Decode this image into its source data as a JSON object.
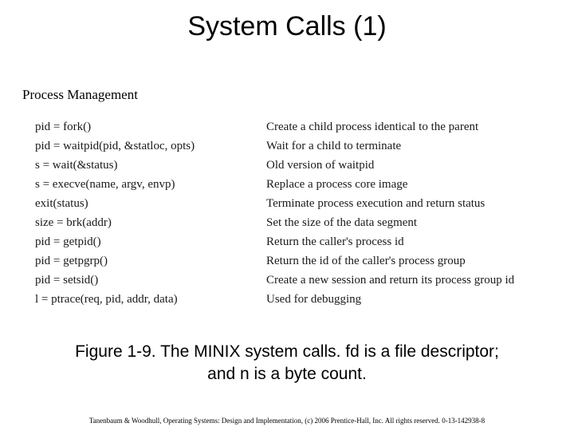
{
  "title": "System Calls (1)",
  "section_label": "Process Management",
  "syscalls": {
    "rows": [
      {
        "call": "pid = fork()",
        "desc": "Create a child process identical to the parent"
      },
      {
        "call": "pid = waitpid(pid, &statloc, opts)",
        "desc": "Wait for a child to terminate"
      },
      {
        "call": "s = wait(&status)",
        "desc": "Old version of waitpid"
      },
      {
        "call": "s = execve(name, argv, envp)",
        "desc": "Replace a process core image"
      },
      {
        "call": "exit(status)",
        "desc": "Terminate process execution and return status"
      },
      {
        "call": "size = brk(addr)",
        "desc": "Set the size of the data segment"
      },
      {
        "call": "pid = getpid()",
        "desc": "Return the caller's process id"
      },
      {
        "call": "pid = getpgrp()",
        "desc": "Return the id of the caller's process group"
      },
      {
        "call": "pid = setsid()",
        "desc": "Create a new session and return its process group id"
      },
      {
        "call": "l = ptrace(req, pid, addr, data)",
        "desc": "Used for debugging"
      }
    ]
  },
  "caption_line1": "Figure 1-9. The MINIX system calls. fd is a file descriptor;",
  "caption_line2": "and n is a byte count.",
  "footer": "Tanenbaum & Woodhull, Operating Systems: Design and Implementation, (c) 2006 Prentice-Hall, Inc. All rights reserved. 0-13-142938-8",
  "colors": {
    "background": "#ffffff",
    "text": "#000000",
    "table_text": "#1a1a1a"
  },
  "typography": {
    "title_fontsize": 34,
    "section_fontsize": 17,
    "row_fontsize": 15,
    "caption_fontsize": 21,
    "footer_fontsize": 9
  }
}
